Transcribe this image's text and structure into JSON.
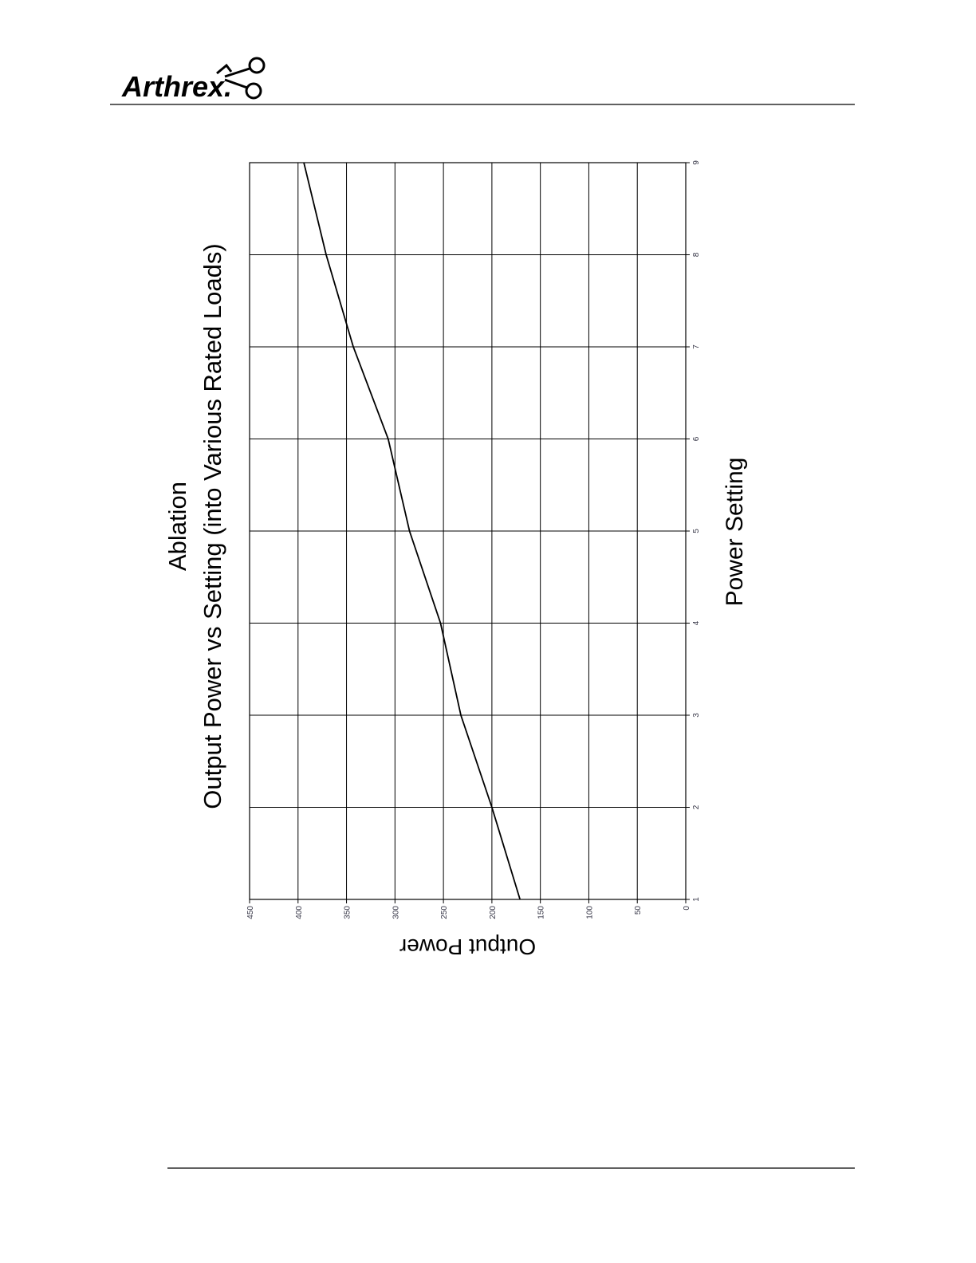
{
  "header": {
    "logo": "Arthrex."
  },
  "chart_data": {
    "type": "line",
    "title": "Ablation",
    "subtitle": "Output Power vs Setting (into Various Rated Loads)",
    "x_label": "Power Setting",
    "y_label": "Output Power",
    "x": [
      1,
      2,
      3,
      4,
      5,
      6,
      7,
      8,
      9
    ],
    "values": [
      171,
      200,
      232,
      253,
      285,
      307,
      343,
      371,
      394
    ],
    "color": "#000000",
    "xlim": [
      1,
      9
    ],
    "xticks": [
      1,
      2,
      3,
      4,
      5,
      6,
      7,
      8,
      9
    ],
    "ylim": [
      0,
      450
    ],
    "yticks": [
      0,
      50,
      100,
      150,
      200,
      250,
      300,
      350,
      400,
      450
    ],
    "grid": true,
    "rotation": -90
  }
}
